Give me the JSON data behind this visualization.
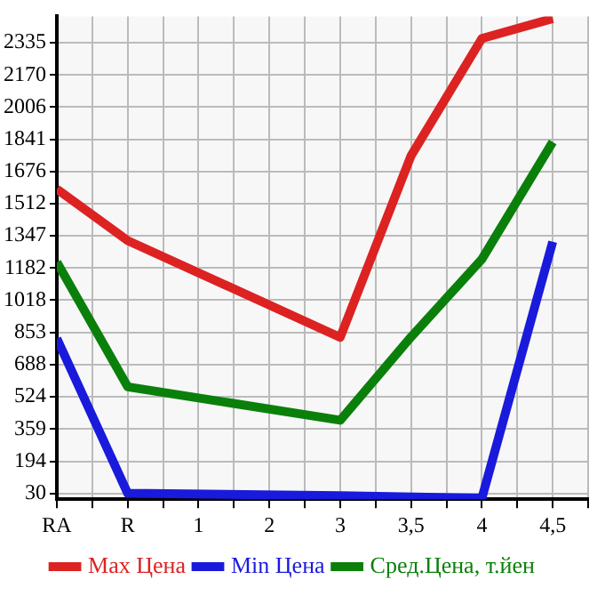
{
  "chart_data": {
    "type": "line",
    "categories": [
      "RA",
      "R",
      "1",
      "2",
      "3",
      "3,5",
      "4",
      "4,5"
    ],
    "series": [
      {
        "name": "Max Цена",
        "color": "#dd2222",
        "values": [
          1587,
          1323,
          null,
          null,
          828,
          1757,
          2357,
          2459
        ]
      },
      {
        "name": "Min Цена",
        "color": "#1a1adc",
        "values": [
          822,
          30,
          null,
          null,
          18,
          null,
          5,
          1317
        ]
      },
      {
        "name": "Сред.Цена, т.йен",
        "color": "#0a800a",
        "values": [
          1213,
          575,
          null,
          null,
          404,
          830,
          1228,
          1827
        ]
      }
    ],
    "ylim": [
      0,
      2470
    ],
    "yticks": [
      30,
      194,
      359,
      524,
      688,
      853,
      1018,
      1182,
      1347,
      1512,
      1676,
      1841,
      2006,
      2170,
      2335
    ],
    "grid": true,
    "legend": "bottom",
    "marker": "none",
    "line_style": "solid"
  }
}
